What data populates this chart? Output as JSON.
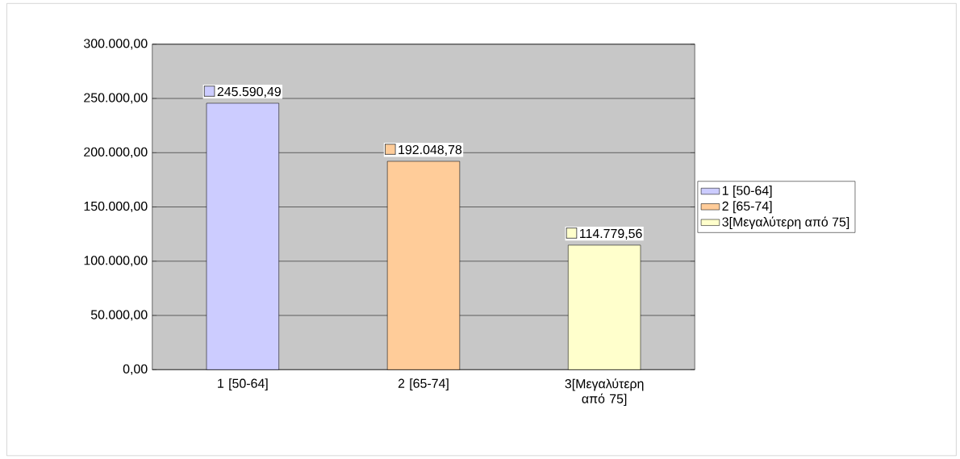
{
  "chart_data": {
    "type": "bar",
    "categories": [
      "1 [50-64]",
      "2 [65-74]",
      "3[Μεγαλύτερη από 75]"
    ],
    "series": [
      {
        "name": "1 [50-64]",
        "color": "#ccccff",
        "values": [
          245590.49,
          null,
          null
        ],
        "value_labels": [
          "245.590,49",
          null,
          null
        ]
      },
      {
        "name": "2 [65-74]",
        "color": "#ffcc99",
        "values": [
          null,
          192048.78,
          null
        ],
        "value_labels": [
          null,
          "192.048,78",
          null
        ]
      },
      {
        "name": "3[Μεγαλύτερη από 75]",
        "color": "#ffffcc",
        "values": [
          null,
          null,
          114779.56
        ],
        "value_labels": [
          null,
          null,
          "114.779,56"
        ]
      }
    ],
    "ylim": [
      0,
      300000
    ],
    "yticks": [
      {
        "value": 0,
        "label": "0,00"
      },
      {
        "value": 50000,
        "label": "50.000,00"
      },
      {
        "value": 100000,
        "label": "100.000,00"
      },
      {
        "value": 150000,
        "label": "150.000,00"
      },
      {
        "value": 200000,
        "label": "200.000,00"
      },
      {
        "value": 250000,
        "label": "250.000,00"
      },
      {
        "value": 300000,
        "label": "300.000,00"
      }
    ],
    "grid": "y",
    "legend": "right"
  }
}
